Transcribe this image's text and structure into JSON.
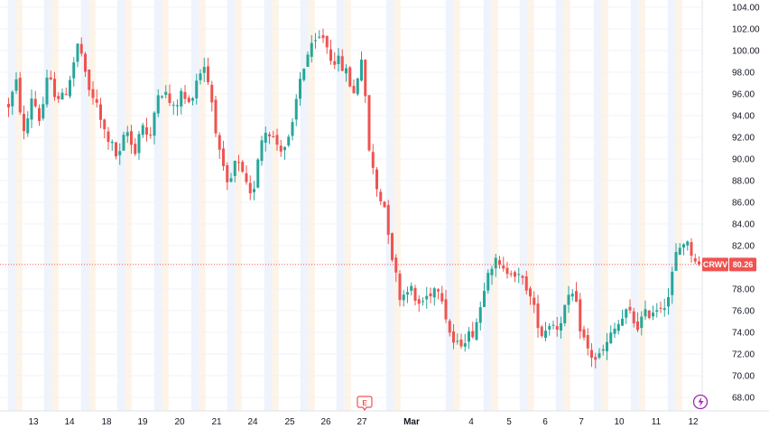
{
  "chart_data": {
    "type": "candlestick",
    "symbol": "CRWV",
    "last_price": "80.26",
    "ylim": [
      66.5,
      105
    ],
    "y_ticks": [
      "68.00",
      "70.00",
      "72.00",
      "74.00",
      "76.00",
      "78.00",
      "80.00",
      "82.00",
      "84.00",
      "86.00",
      "88.00",
      "90.00",
      "92.00",
      "94.00",
      "96.00",
      "98.00",
      "100.00",
      "102.00",
      "104.00"
    ],
    "x_labels": [
      {
        "label": "13",
        "bold": false
      },
      {
        "label": "14",
        "bold": false
      },
      {
        "label": "18",
        "bold": false
      },
      {
        "label": "19",
        "bold": false
      },
      {
        "label": "20",
        "bold": false
      },
      {
        "label": "21",
        "bold": false
      },
      {
        "label": "24",
        "bold": false
      },
      {
        "label": "25",
        "bold": false
      },
      {
        "label": "26",
        "bold": false
      },
      {
        "label": "27",
        "bold": false
      },
      {
        "label": "Mar",
        "bold": true
      },
      {
        "label": "4",
        "bold": false
      },
      {
        "label": "5",
        "bold": false
      },
      {
        "label": "6",
        "bold": false
      },
      {
        "label": "7",
        "bold": false
      },
      {
        "label": "10",
        "bold": false
      },
      {
        "label": "11",
        "bold": false
      },
      {
        "label": "12",
        "bold": false
      }
    ],
    "earnings_marker": {
      "label": "E",
      "day": "27"
    },
    "colors": {
      "up": "#26a69a",
      "down": "#ef5350",
      "session_premarket": "#eef3fc",
      "session_postmarket": "#fdf3e7",
      "grid": "#f0f3fa",
      "last_price_line": "#ef5350"
    },
    "path": [
      [
        0,
        95
      ],
      [
        1,
        97
      ],
      [
        2,
        92
      ],
      [
        3,
        96
      ],
      [
        4,
        93.5
      ],
      [
        5,
        97.5
      ],
      [
        6,
        96
      ],
      [
        7,
        95.5
      ],
      [
        8,
        98
      ],
      [
        9,
        101
      ],
      [
        10,
        96.5
      ],
      [
        11,
        95.5
      ],
      [
        12,
        92.8
      ],
      [
        13,
        91.5
      ],
      [
        14,
        89.8
      ],
      [
        15,
        92.8
      ],
      [
        16,
        90.5
      ],
      [
        17,
        93.5
      ],
      [
        18,
        91.3
      ],
      [
        19,
        96.5
      ],
      [
        20,
        96
      ],
      [
        21,
        94.5
      ],
      [
        22,
        96
      ],
      [
        23,
        95
      ],
      [
        24,
        97.5
      ],
      [
        25,
        98.8
      ],
      [
        26,
        95
      ],
      [
        27,
        89.8
      ],
      [
        28,
        87
      ],
      [
        29,
        90
      ],
      [
        30,
        88
      ],
      [
        31,
        86
      ],
      [
        32,
        91.5
      ],
      [
        33,
        93
      ],
      [
        34,
        91.5
      ],
      [
        35,
        91
      ],
      [
        36,
        92
      ],
      [
        37,
        97
      ],
      [
        38,
        99.5
      ],
      [
        39,
        100.5
      ],
      [
        40,
        101.5
      ],
      [
        41,
        99.5
      ],
      [
        42,
        99
      ],
      [
        43,
        98
      ],
      [
        44,
        96
      ],
      [
        45,
        99.5
      ],
      [
        46,
        90.5
      ],
      [
        47,
        87
      ],
      [
        48,
        85.5
      ],
      [
        49,
        80.5
      ],
      [
        50,
        77
      ],
      [
        51,
        78.5
      ],
      [
        52,
        76.5
      ],
      [
        53,
        77
      ],
      [
        54,
        78
      ],
      [
        55,
        78.4
      ],
      [
        56,
        74.5
      ],
      [
        57,
        72.5
      ],
      [
        58,
        73.5
      ],
      [
        59,
        73.8
      ],
      [
        60,
        75.8
      ],
      [
        61,
        80
      ],
      [
        62,
        80.5
      ],
      [
        63,
        79.5
      ],
      [
        64,
        80
      ],
      [
        65,
        79
      ],
      [
        66,
        78.3
      ],
      [
        67,
        76
      ],
      [
        68,
        73.8
      ],
      [
        69,
        75
      ],
      [
        70,
        74.5
      ],
      [
        71,
        76.5
      ],
      [
        72,
        77.5
      ],
      [
        73,
        74
      ],
      [
        74,
        72
      ],
      [
        75,
        71.5
      ],
      [
        76,
        72.5
      ],
      [
        77,
        74
      ],
      [
        78,
        75
      ],
      [
        79,
        76
      ],
      [
        80,
        74.5
      ],
      [
        81,
        75.5
      ],
      [
        82,
        76
      ],
      [
        83,
        76.5
      ],
      [
        84,
        77
      ],
      [
        85,
        81
      ],
      [
        86,
        82.5
      ],
      [
        87,
        81.5
      ],
      [
        88,
        80.26
      ]
    ]
  }
}
